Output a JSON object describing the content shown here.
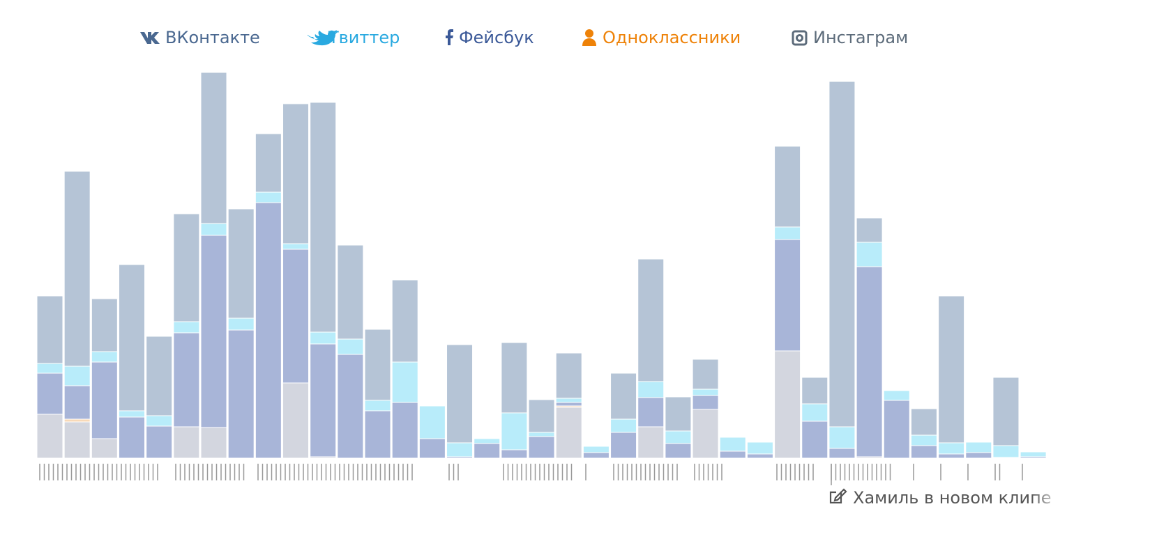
{
  "chart_data": {
    "type": "stacked-bar",
    "series": [
      {
        "name": "ВКонтакте",
        "legend_color": "#4a6890",
        "color": "#b5c4d6",
        "values": [
          97,
          280,
          76,
          210,
          114,
          155,
          217,
          157,
          84,
          201,
          330,
          135,
          102,
          118,
          0,
          141,
          0,
          101,
          47,
          65,
          0,
          66,
          176,
          49,
          43,
          0,
          0,
          116,
          38,
          496,
          35,
          0,
          38,
          211,
          0,
          98,
          0
        ]
      },
      {
        "name": "Твиттер",
        "legend_color": "#29a9e0",
        "color": "#b8ecfa",
        "values": [
          14,
          28,
          15,
          9,
          15,
          16,
          17,
          17,
          15,
          8,
          17,
          22,
          15,
          58,
          47,
          20,
          7,
          53,
          6,
          6,
          9,
          19,
          23,
          18,
          9,
          20,
          17,
          18,
          25,
          31,
          35,
          14,
          15,
          16,
          15,
          17,
          7
        ]
      },
      {
        "name": "Фейсбук",
        "legend_color": "#3b5998",
        "color": "#a8b5d8",
        "values": [
          59,
          48,
          110,
          59,
          46,
          135,
          276,
          184,
          367,
          192,
          162,
          149,
          68,
          80,
          28,
          2,
          21,
          12,
          31,
          5,
          8,
          37,
          42,
          21,
          20,
          10,
          6,
          160,
          53,
          14,
          273,
          83,
          18,
          6,
          8,
          1,
          2
        ]
      },
      {
        "name": "Одноклассники",
        "legend_color": "#ee8208",
        "color": "#f7d9b8",
        "values": [
          0,
          4,
          0,
          0,
          0,
          0,
          0,
          0,
          0,
          0,
          0,
          0,
          0,
          0,
          0,
          0,
          0,
          0,
          0,
          2,
          0,
          0,
          0,
          0,
          0,
          0,
          0,
          0,
          0,
          0,
          0,
          0,
          0,
          0,
          0,
          0,
          0
        ]
      },
      {
        "name": "Инстаграм",
        "legend_color": "#5c6b7a",
        "color": "#d3d6df",
        "values": [
          63,
          52,
          28,
          0,
          0,
          45,
          44,
          0,
          0,
          108,
          2,
          0,
          0,
          0,
          0,
          0,
          0,
          0,
          0,
          73,
          0,
          0,
          45,
          0,
          70,
          0,
          0,
          154,
          0,
          0,
          2,
          0,
          0,
          0,
          0,
          0,
          0
        ]
      }
    ],
    "ylim": [
      0,
      560
    ],
    "annotation": "Хамиль в новом клипе"
  }
}
